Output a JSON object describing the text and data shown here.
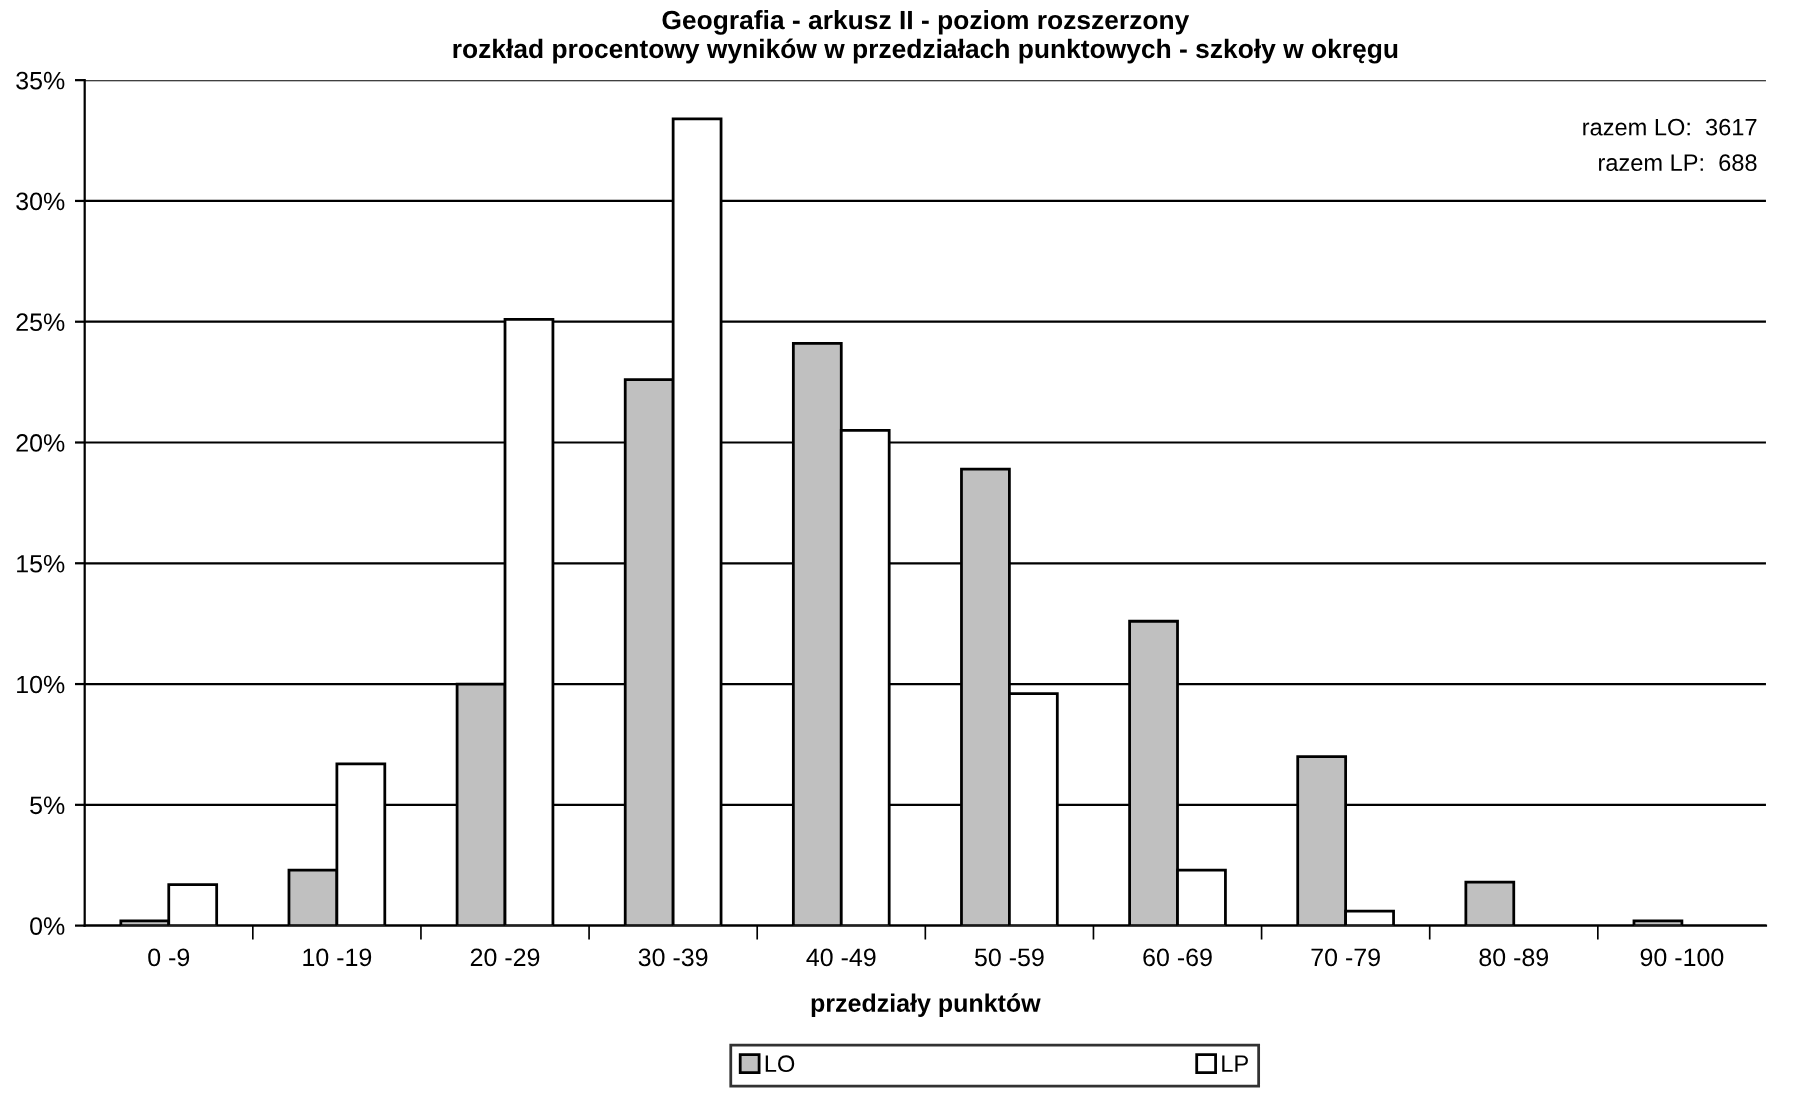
{
  "chart_data": {
    "type": "bar",
    "title": "Geografia - arkusz II - poziom rozszerzony\nrozkład procentowy wyników w przedziałach punktowych - szkoły w okręgu",
    "xlabel": "przedziały punktów",
    "categories": [
      "0 -9",
      "10 -19",
      "20 -29",
      "30 -39",
      "40 -49",
      "50 -59",
      "60 -69",
      "70 -79",
      "80 -89",
      "90 -100"
    ],
    "series": [
      {
        "name": "LO",
        "color": "#c0c0c0",
        "values": [
          0.2,
          2.3,
          10.0,
          22.6,
          24.1,
          18.9,
          12.6,
          7.0,
          1.8,
          0.2
        ]
      },
      {
        "name": "LP",
        "color": "#ffffff",
        "values": [
          1.7,
          6.7,
          25.1,
          33.4,
          20.5,
          9.6,
          2.3,
          0.6,
          null,
          null
        ]
      }
    ],
    "ylim": [
      0,
      35
    ],
    "yticks": [
      {
        "value": 0,
        "label": "0%"
      },
      {
        "value": 5,
        "label": "5%"
      },
      {
        "value": 10,
        "label": "10%"
      },
      {
        "value": 15,
        "label": "15%"
      },
      {
        "value": 20,
        "label": "20%"
      },
      {
        "value": 25,
        "label": "25%"
      },
      {
        "value": 30,
        "label": "30%"
      },
      {
        "value": 35,
        "label": "35%"
      }
    ],
    "grid": "y",
    "legend": "bottom",
    "annotations": [
      "razem LO:  3617",
      "razem LP:  688"
    ]
  }
}
